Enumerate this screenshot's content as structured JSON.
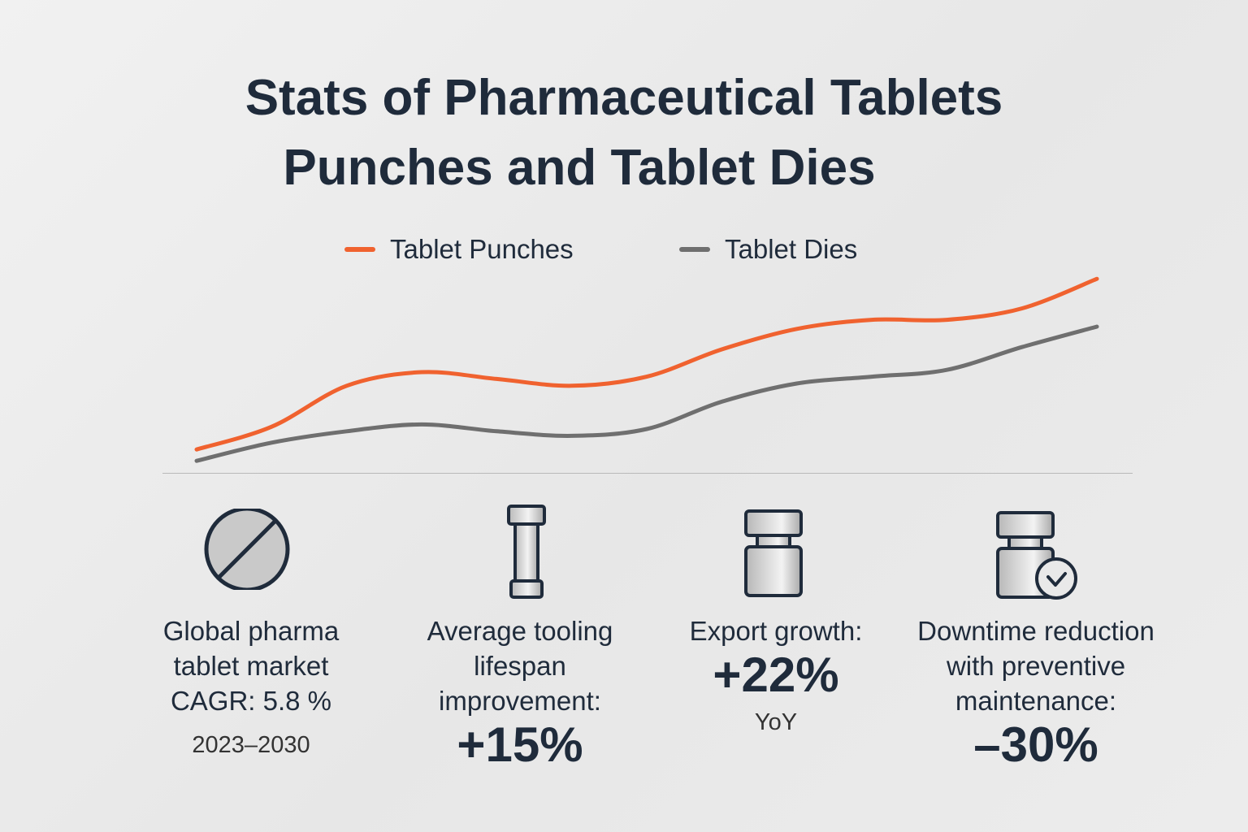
{
  "title": {
    "line1": "Stats of Pharmaceutical Tablets",
    "line2": "Punches and Tablet Dies"
  },
  "chart_data": {
    "type": "line",
    "title": "Stats of Pharmaceutical Tablets Punches and Tablet Dies",
    "xlabel": "",
    "ylabel": "",
    "grid": false,
    "legend_position": "top-center",
    "x": [
      0,
      1,
      2,
      3,
      4,
      5,
      6,
      7,
      8,
      9,
      10,
      11,
      12
    ],
    "ylim": [
      0,
      100
    ],
    "series": [
      {
        "name": "Tablet Punches",
        "color": "#f0622f",
        "values": [
          6,
          16,
          34,
          40,
          37,
          34,
          38,
          50,
          59,
          63,
          63,
          68,
          81
        ]
      },
      {
        "name": "Tablet Dies",
        "color": "#6f6f6f",
        "values": [
          1,
          9,
          14,
          17,
          14,
          12,
          15,
          27,
          35,
          38,
          41,
          51,
          60
        ]
      }
    ]
  },
  "stats": [
    {
      "label": "Global pharma tablet market CAGR: 5.8 %",
      "sub": "2023–2030",
      "icon": "tablet-icon"
    },
    {
      "label": "Average tooling lifespan improvement:",
      "value": "+15%",
      "icon": "punch-icon"
    },
    {
      "label": "Export growth:",
      "value": "+22%",
      "sub": "YoY",
      "icon": "die-icon"
    },
    {
      "label": "Downtime reduction with preventive maintenance:",
      "value": "–30%",
      "icon": "die-clock-icon"
    }
  ]
}
